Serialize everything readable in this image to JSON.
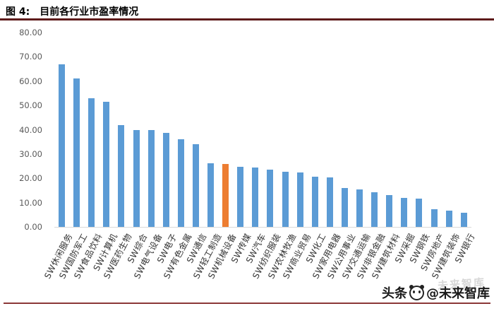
{
  "header": {
    "figure_label": "图 4:",
    "title": "目前各行业市盈率情况"
  },
  "watermark": {
    "prefix": "头条",
    "suffix": "@未来智库",
    "ghost": "未来智库",
    "logo": "panda-icon"
  },
  "chart_data": {
    "type": "bar",
    "title": "目前各行业市盈率情况",
    "xlabel": "",
    "ylabel": "",
    "ylim": [
      0,
      80
    ],
    "ytick_step": 10,
    "ytick_labels": [
      "80.00",
      "70.00",
      "60.00",
      "50.00",
      "40.00",
      "30.00",
      "20.00",
      "10.00",
      "0.00"
    ],
    "grid": false,
    "legend": "none",
    "categories": [
      "SW休闲服务",
      "SW国防军工",
      "SW食品饮料",
      "SW计算机",
      "SW医药生物",
      "SW综合",
      "SW电气设备",
      "SW电子",
      "SW有色金属",
      "SW通信",
      "SW轻工制造",
      "SW机械设备",
      "SW传媒",
      "SW汽车",
      "SW纺织服装",
      "SW农林牧渔",
      "SW商业贸易",
      "SW化工",
      "SW家用电器",
      "SW公用事业",
      "SW交通运输",
      "SW非银金融",
      "SW建筑材料",
      "SW采掘",
      "SW钢铁",
      "SW房地产",
      "SW建筑装饰",
      "SW银行"
    ],
    "values": [
      67.0,
      61.0,
      53.0,
      51.5,
      42.0,
      40.0,
      40.0,
      38.8,
      36.2,
      34.0,
      26.2,
      25.8,
      24.8,
      24.4,
      23.6,
      22.6,
      22.4,
      20.8,
      20.4,
      15.9,
      15.5,
      14.4,
      13.1,
      12.0,
      11.7,
      7.2,
      6.7,
      5.9
    ],
    "highlight_index": 11,
    "highlight_category": "SW机械设备",
    "bar_color": "#5B9BD5",
    "highlight_color": "#ED7D31",
    "axis_label_color": "#595959",
    "axis_line_color": "#D9D9D9"
  }
}
